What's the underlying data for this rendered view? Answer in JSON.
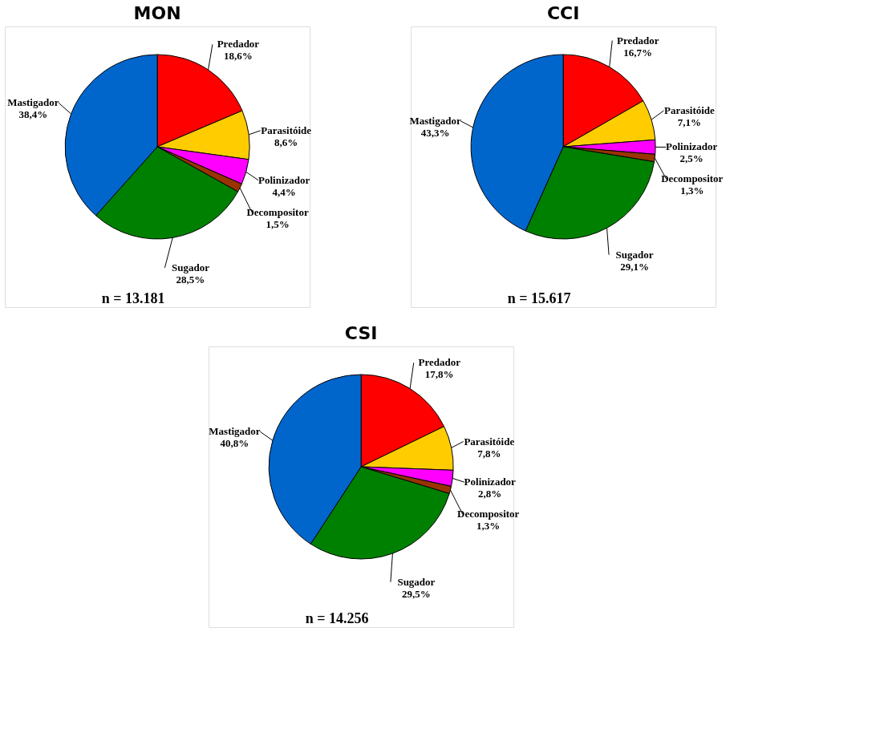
{
  "chart_data": [
    {
      "type": "pie",
      "title": "MON",
      "categories": [
        "Predador",
        "Parasitóide",
        "Polinizador",
        "Decompositor",
        "Sugador",
        "Mastigador"
      ],
      "values": [
        18.6,
        8.6,
        4.4,
        1.5,
        28.5,
        38.4
      ],
      "colors": [
        "#ff0000",
        "#ffcc00",
        "#ff00ff",
        "#993300",
        "#008000",
        "#0066cc"
      ],
      "value_labels": [
        "18,6%",
        "8,6%",
        "4,4%",
        "1,5%",
        "28,5%",
        "38,4%"
      ],
      "annotations": [
        "n = 13.181"
      ]
    },
    {
      "type": "pie",
      "title": "CCI",
      "categories": [
        "Predador",
        "Parasitóide",
        "Polinizador",
        "Decompositor",
        "Sugador",
        "Mastigador"
      ],
      "values": [
        16.7,
        7.1,
        2.5,
        1.3,
        29.1,
        43.3
      ],
      "colors": [
        "#ff0000",
        "#ffcc00",
        "#ff00ff",
        "#993300",
        "#008000",
        "#0066cc"
      ],
      "value_labels": [
        "16,7%",
        "7,1%",
        "2,5%",
        "1,3%",
        "29,1%",
        "43,3%"
      ],
      "annotations": [
        "n = 15.617"
      ]
    },
    {
      "type": "pie",
      "title": "CSI",
      "categories": [
        "Predador",
        "Parasitóide",
        "Polinizador",
        "Decompositor",
        "Sugador",
        "Mastigador"
      ],
      "values": [
        17.8,
        7.8,
        2.8,
        1.3,
        29.5,
        40.8
      ],
      "colors": [
        "#ff0000",
        "#ffcc00",
        "#ff00ff",
        "#993300",
        "#008000",
        "#0066cc"
      ],
      "value_labels": [
        "17,8%",
        "7,8%",
        "2,8%",
        "1,3%",
        "29,5%",
        "40,8%"
      ],
      "annotations": [
        "n = 14.256"
      ]
    }
  ]
}
